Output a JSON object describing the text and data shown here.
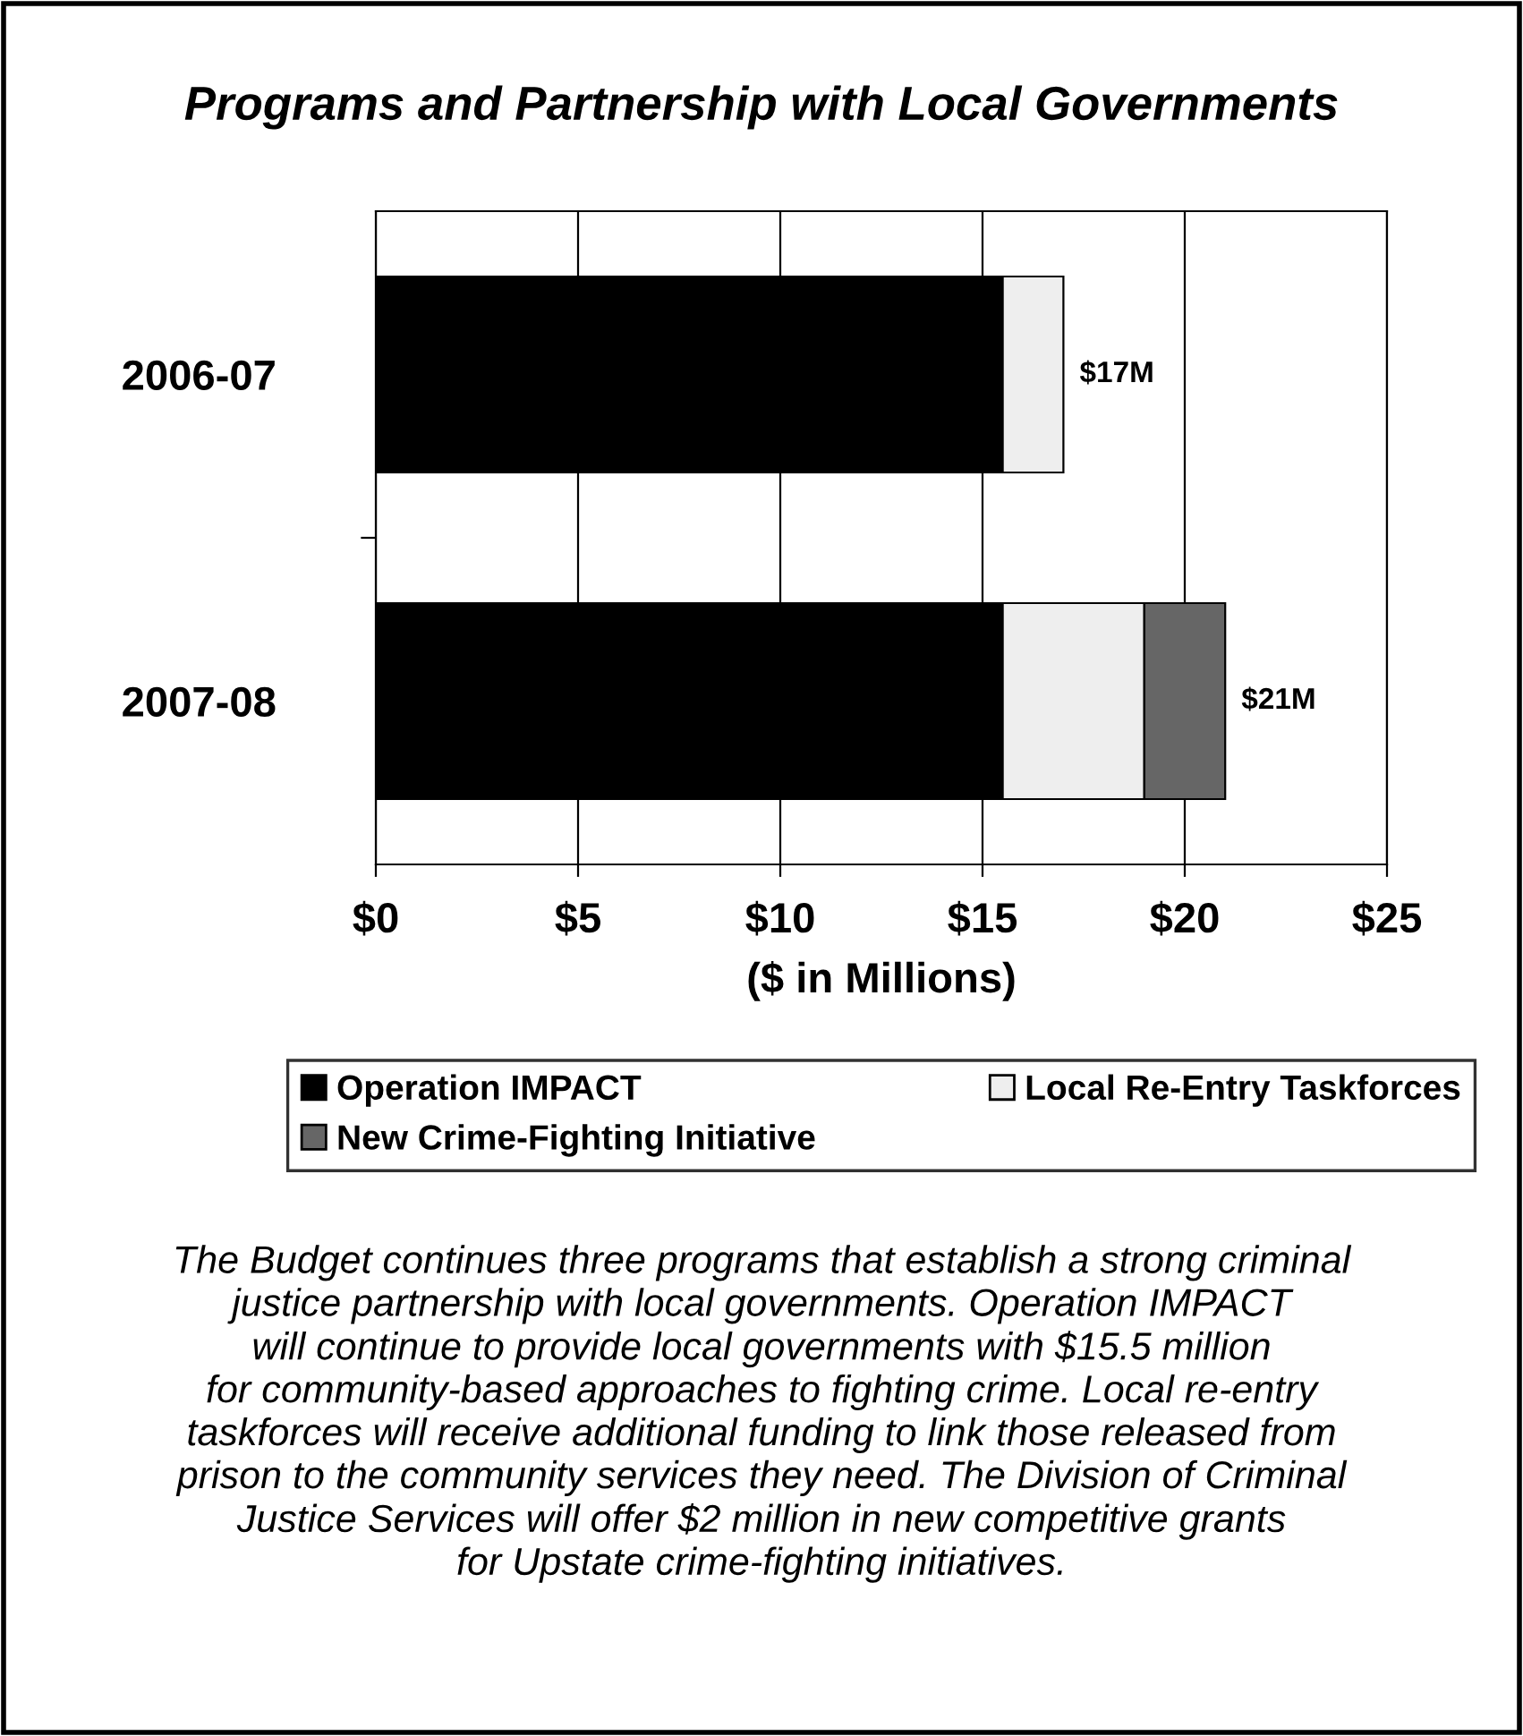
{
  "chart_data": {
    "type": "bar",
    "orientation": "horizontal",
    "stacked": true,
    "title": "Programs and Partnership with Local Governments",
    "xlabel": "($ in Millions)",
    "categories": [
      "2006-07",
      "2007-08"
    ],
    "series": [
      {
        "name": "Operation IMPACT",
        "color": "#000000",
        "values": [
          15.5,
          15.5
        ]
      },
      {
        "name": "Local Re-Entry Taskforces",
        "color": "#eeeeee",
        "values": [
          1.5,
          3.5
        ]
      },
      {
        "name": "New Crime-Fighting Initiative",
        "color": "#666666",
        "values": [
          null,
          2
        ]
      }
    ],
    "totals": [
      "$17M",
      "$21M"
    ],
    "xlim": [
      0,
      25
    ],
    "xticks": [
      {
        "value": 0,
        "label": "$0"
      },
      {
        "value": 5,
        "label": "$5"
      },
      {
        "value": 10,
        "label": "$10"
      },
      {
        "value": 15,
        "label": "$15"
      },
      {
        "value": 20,
        "label": "$20"
      },
      {
        "value": 25,
        "label": "$25"
      }
    ],
    "grid": "x",
    "legend": "bottom",
    "annotations": [
      "The Budget continues three programs that establish a strong criminal\njustice partnership with local governments. Operation IMPACT\nwill continue to provide local governments with $15.5 million\nfor community-based approaches to fighting crime. Local re-entry\ntaskforces will receive additional funding to link those released from\nprison to the community services they need. The Division of Criminal\nJustice Services will offer $2 million in new competitive grants\nfor Upstate crime-fighting initiatives."
    ]
  }
}
